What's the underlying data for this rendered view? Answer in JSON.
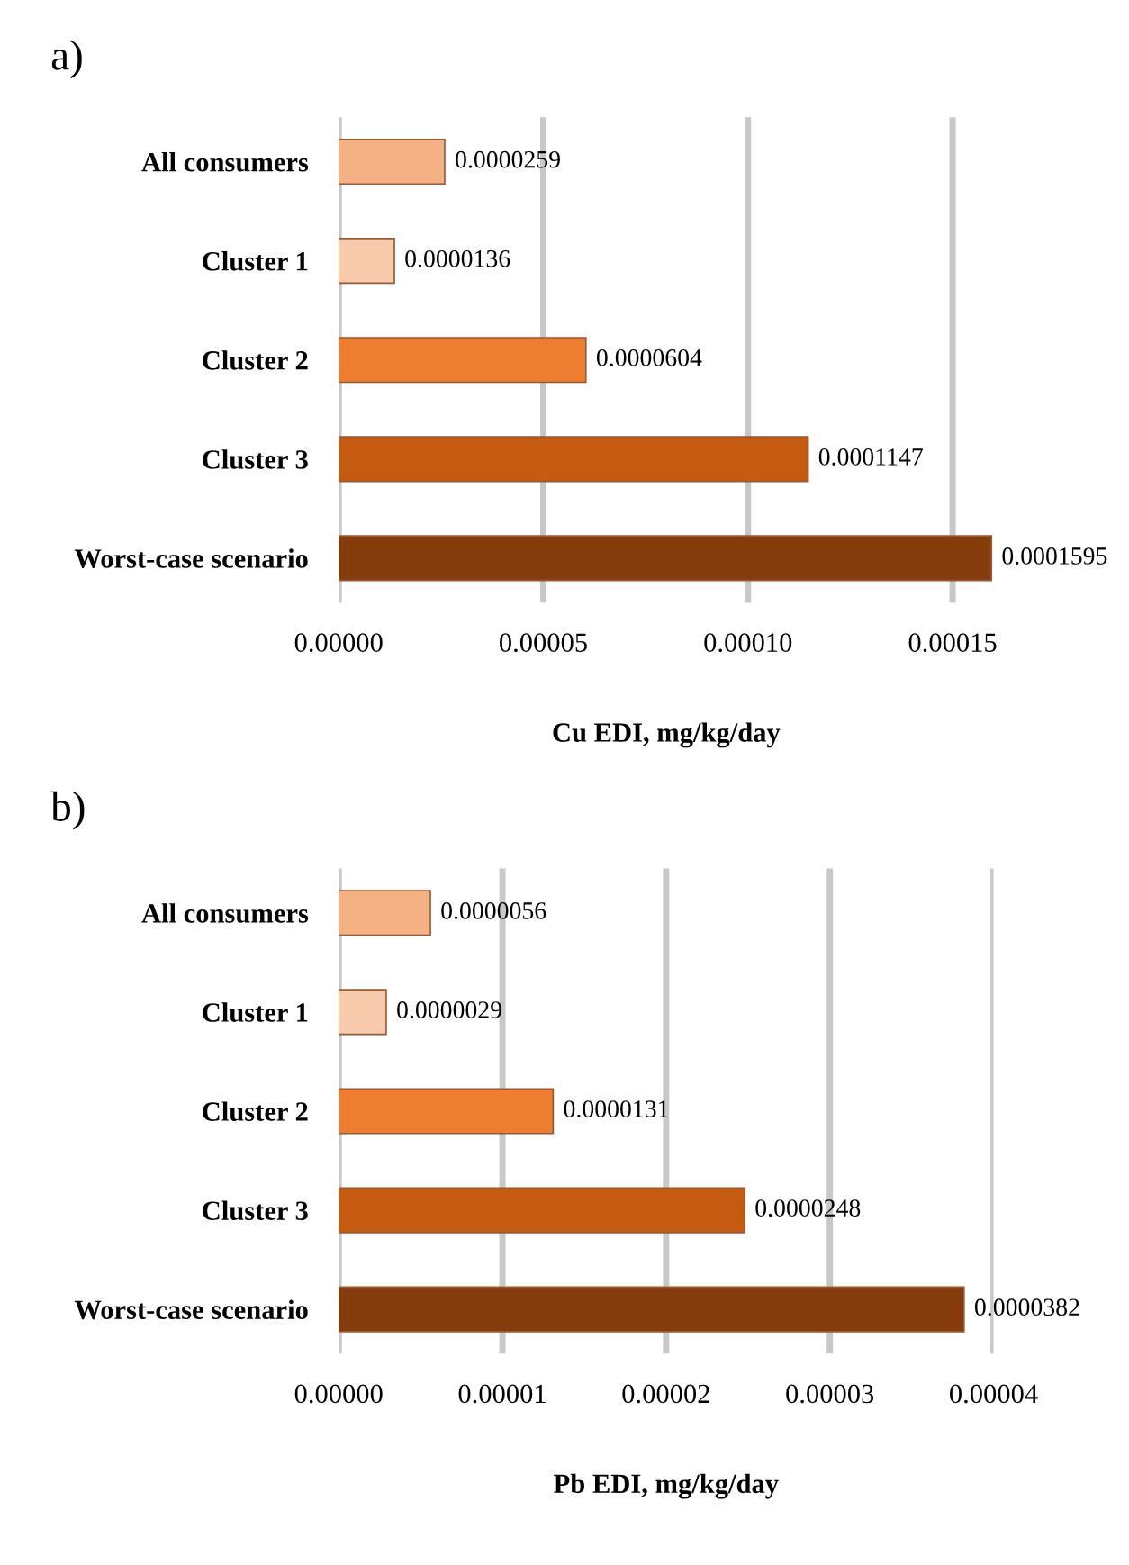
{
  "chart_data": [
    {
      "type": "bar",
      "title": "a)",
      "orientation": "horizontal",
      "xlabel": "Cu EDI, mg/kg/day",
      "categories": [
        "All consumers",
        "Cluster 1",
        "Cluster 2",
        "Cluster 3",
        "Worst-case scenario"
      ],
      "values": [
        2.59e-05,
        1.36e-05,
        6.04e-05,
        0.0001147,
        0.0001595
      ],
      "value_labels": [
        "0.0000259",
        "0.0000136",
        "0.0000604",
        "0.0001147",
        "0.0001595"
      ],
      "colors": [
        "#f4b183",
        "#f8cbad",
        "#ed7d31",
        "#c55a11",
        "#843c0c"
      ],
      "xlim": [
        0,
        0.00016
      ],
      "xticks": [
        {
          "value": 0,
          "label": "0.00000"
        },
        {
          "value": 5e-05,
          "label": "0.00005"
        },
        {
          "value": 0.0001,
          "label": "0.00010"
        },
        {
          "value": 0.00015,
          "label": "0.00015"
        }
      ],
      "grid": "x"
    },
    {
      "type": "bar",
      "title": "b)",
      "orientation": "horizontal",
      "xlabel": "Pb EDI, mg/kg/day",
      "categories": [
        "All consumers",
        "Cluster 1",
        "Cluster 2",
        "Cluster 3",
        "Worst-case scenario"
      ],
      "values": [
        5.6e-06,
        2.9e-06,
        1.31e-05,
        2.48e-05,
        3.82e-05
      ],
      "value_labels": [
        "0.0000056",
        "0.0000029",
        "0.0000131",
        "0.0000248",
        "0.0000382"
      ],
      "colors": [
        "#f4b183",
        "#f8cbad",
        "#ed7d31",
        "#c55a11",
        "#843c0c"
      ],
      "xlim": [
        0,
        4e-05
      ],
      "xticks": [
        {
          "value": 0,
          "label": "0.00000"
        },
        {
          "value": 1e-05,
          "label": "0.00001"
        },
        {
          "value": 2e-05,
          "label": "0.00002"
        },
        {
          "value": 3e-05,
          "label": "0.00003"
        },
        {
          "value": 4e-05,
          "label": "0.00004"
        }
      ],
      "grid": "x"
    }
  ]
}
